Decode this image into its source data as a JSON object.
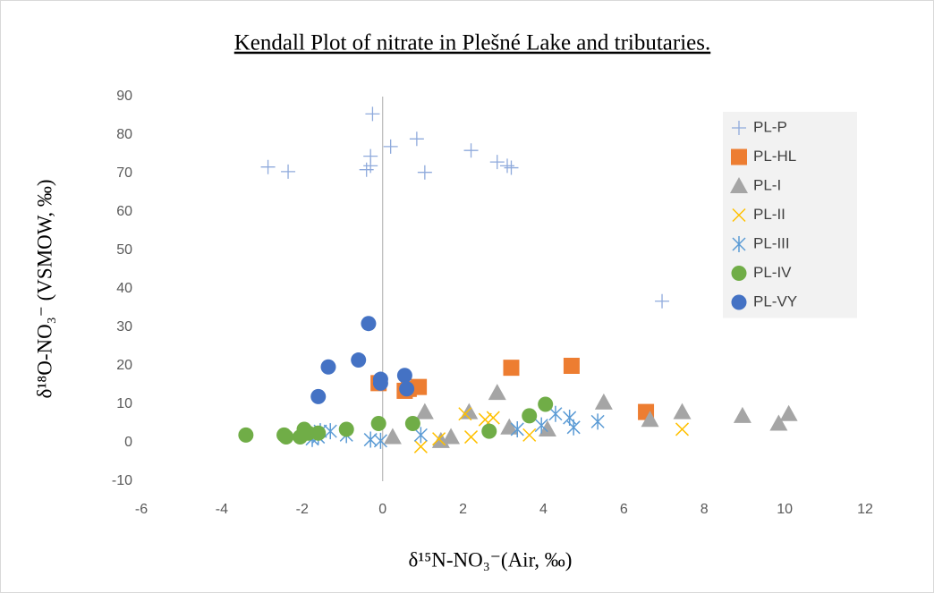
{
  "chart_data": {
    "type": "scatter",
    "title": "Kendall Plot of nitrate in Plešné Lake and tributaries.",
    "x_label": "δ¹⁵N-NO₃⁻(Air, ‰)",
    "y_label": "δ¹⁸O-NO₃⁻ (VSMOW, ‰)",
    "xlim": [
      -6,
      12
    ],
    "xticks": [
      -6,
      -4,
      -2,
      0,
      2,
      4,
      6,
      8,
      10,
      12
    ],
    "ylim": [
      -10,
      90
    ],
    "yticks": [
      -10,
      0,
      10,
      20,
      30,
      40,
      50,
      60,
      70,
      80,
      90
    ],
    "grid": false,
    "legend": "upper right",
    "series": [
      {
        "name": "PL-P",
        "color": "#8faadc",
        "marker": "plus",
        "x": [
          -2.85,
          -2.35,
          -0.4,
          -0.3,
          -0.3,
          -0.25,
          0.2,
          0.85,
          1.05,
          2.2,
          2.85,
          3.1,
          3.2,
          6.95
        ],
        "values": [
          71.7,
          70.5,
          71,
          72,
          74.5,
          85.5,
          77,
          79,
          70.3,
          76,
          73,
          72,
          71.5,
          36.8
        ]
      },
      {
        "name": "PL-HL",
        "color": "#ed7d31",
        "marker": "square",
        "x": [
          -0.1,
          0.55,
          0.65,
          0.9,
          3.2,
          4.7,
          6.55
        ],
        "values": [
          15.5,
          13.5,
          14,
          14.5,
          19.5,
          20,
          8
        ]
      },
      {
        "name": "PL-I",
        "color": "#a5a5a5",
        "marker": "triangle",
        "x": [
          0.25,
          1.05,
          1.45,
          1.7,
          2.15,
          2.85,
          3.15,
          4.1,
          5.5,
          6.65,
          7.45,
          8.95,
          9.85,
          10.1
        ],
        "values": [
          1.5,
          8,
          0.5,
          1.5,
          8,
          13,
          4,
          3.5,
          10.5,
          6,
          8,
          7,
          5,
          7.5
        ]
      },
      {
        "name": "PL-II",
        "color": "#ffc000",
        "marker": "x",
        "x": [
          0.95,
          1.4,
          2.05,
          2.2,
          2.55,
          2.75,
          3.65,
          7.45
        ],
        "values": [
          -1,
          1,
          7.5,
          1.5,
          6,
          6.5,
          2,
          3.5
        ]
      },
      {
        "name": "PL-III",
        "color": "#5b9bd5",
        "marker": "star",
        "x": [
          -1.75,
          -1.6,
          -1.55,
          -1.3,
          -0.9,
          -0.3,
          -0.05,
          0.95,
          3.35,
          3.95,
          4.3,
          4.65,
          4.75,
          5.35
        ],
        "values": [
          1,
          1.5,
          3,
          3,
          2,
          0.8,
          0.5,
          2,
          3.5,
          4.5,
          7.5,
          6.5,
          4,
          5.5
        ]
      },
      {
        "name": "PL-IV",
        "color": "#70ad47",
        "marker": "circle",
        "x": [
          -3.4,
          -2.45,
          -2.4,
          -2.05,
          -1.95,
          -1.85,
          -1.6,
          -0.9,
          -0.1,
          0.75,
          2.65,
          3.65,
          4.05
        ],
        "values": [
          2,
          2,
          1.5,
          1.5,
          3.5,
          2.5,
          2.5,
          3.5,
          5,
          5,
          3,
          7,
          10
        ]
      },
      {
        "name": "PL-VY",
        "color": "#4472c4",
        "marker": "circle",
        "x": [
          -1.6,
          -1.35,
          -0.6,
          -0.35,
          -0.05,
          -0.05,
          0.55,
          0.6
        ],
        "values": [
          12,
          19.7,
          21.5,
          31,
          16.5,
          15.5,
          17.5,
          14
        ]
      }
    ]
  }
}
